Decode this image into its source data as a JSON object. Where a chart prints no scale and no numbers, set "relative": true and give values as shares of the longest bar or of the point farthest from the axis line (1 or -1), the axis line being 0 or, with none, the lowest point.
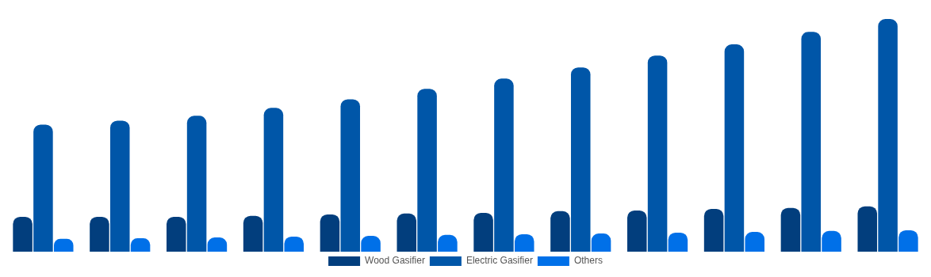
{
  "chart_data": {
    "type": "bar",
    "relative": true,
    "legend": "bottom",
    "categories": [
      null,
      null,
      null,
      null,
      null,
      null,
      null,
      null,
      null,
      null,
      null,
      null
    ],
    "series": [
      {
        "name": "Wood Gasifier",
        "color": "#023e7d",
        "values": [
          0.15,
          0.15,
          0.15,
          0.154,
          0.16,
          0.164,
          0.167,
          0.174,
          0.177,
          0.184,
          0.188,
          0.195
        ]
      },
      {
        "name": "Electric Gasifier",
        "color": "#0056a8",
        "values": [
          0.546,
          0.563,
          0.584,
          0.618,
          0.655,
          0.7,
          0.744,
          0.792,
          0.843,
          0.891,
          0.945,
          1
        ]
      },
      {
        "name": "Others",
        "color": "#0070e8",
        "values": [
          0.055,
          0.058,
          0.061,
          0.065,
          0.068,
          0.072,
          0.075,
          0.078,
          0.082,
          0.085,
          0.089,
          0.092
        ]
      }
    ]
  }
}
